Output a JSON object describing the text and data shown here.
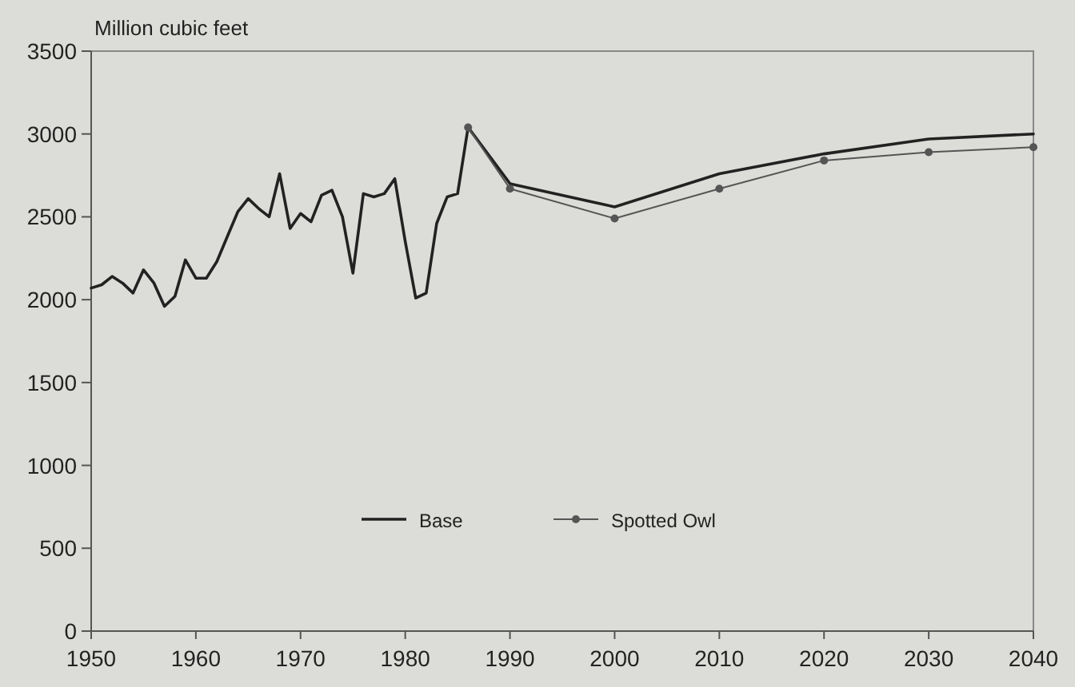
{
  "chart_data": {
    "type": "line",
    "ylabel": "Million cubic feet",
    "xlim": [
      1950,
      2040
    ],
    "xticks": [
      1950,
      1960,
      1970,
      1980,
      1990,
      2000,
      2010,
      2020,
      2030,
      2040
    ],
    "ylim": [
      0,
      3500
    ],
    "yticks": [
      0,
      500,
      1000,
      1500,
      2000,
      2500,
      3000,
      3500
    ],
    "grid": false,
    "legend": "bottom",
    "series": [
      {
        "name": "Base",
        "color": "#222222",
        "marker": "none",
        "x": [
          1950,
          1951,
          1952,
          1953,
          1954,
          1955,
          1956,
          1957,
          1958,
          1959,
          1960,
          1961,
          1962,
          1963,
          1964,
          1965,
          1966,
          1967,
          1968,
          1969,
          1970,
          1971,
          1972,
          1973,
          1974,
          1975,
          1976,
          1977,
          1978,
          1979,
          1980,
          1981,
          1982,
          1983,
          1984,
          1985,
          1986,
          1990,
          2000,
          2010,
          2020,
          2030,
          2040
        ],
        "values": [
          2070,
          2090,
          2140,
          2100,
          2040,
          2180,
          2100,
          1960,
          2020,
          2240,
          2130,
          2130,
          2230,
          2380,
          2530,
          2610,
          2550,
          2500,
          2760,
          2430,
          2520,
          2470,
          2630,
          2660,
          2500,
          2160,
          2640,
          2620,
          2640,
          2730,
          2350,
          2010,
          2040,
          2460,
          2620,
          2640,
          3040,
          2700,
          2560,
          2760,
          2880,
          2970,
          3000
        ]
      },
      {
        "name": "Spotted Owl",
        "color": "#555555",
        "marker": "circle",
        "x": [
          1986,
          1990,
          2000,
          2010,
          2020,
          2030,
          2040
        ],
        "values": [
          3040,
          2670,
          2490,
          2670,
          2840,
          2890,
          2920
        ]
      }
    ]
  }
}
